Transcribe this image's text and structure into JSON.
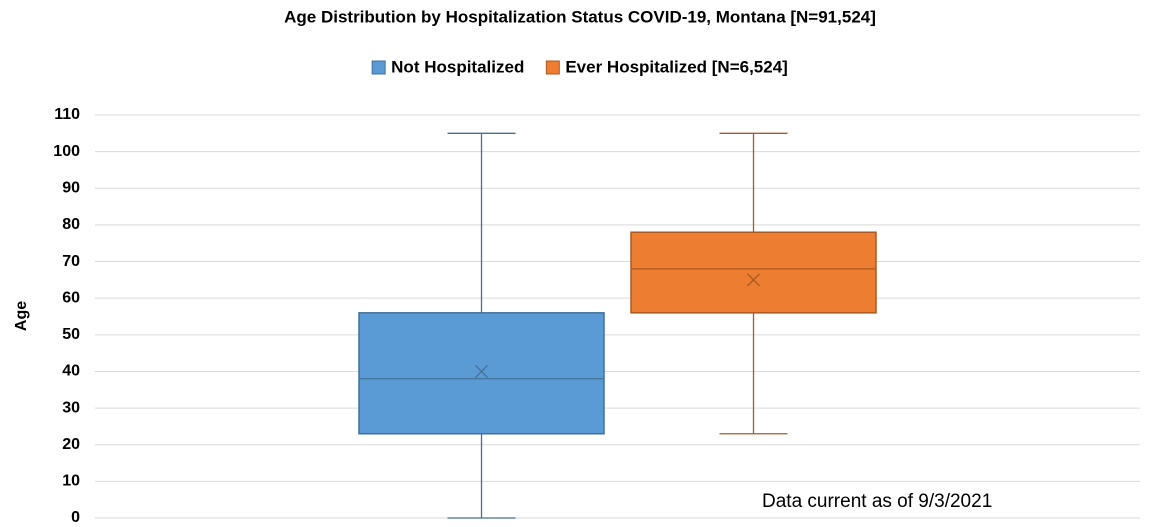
{
  "chart_data": {
    "type": "box",
    "title": "Age Distribution by Hospitalization Status COVID-19, Montana [N=91,524]",
    "ylabel": "Age",
    "annotation": "Data current as of 9/3/2021",
    "ylim": [
      0,
      110
    ],
    "yticks": [
      0,
      10,
      20,
      30,
      40,
      50,
      60,
      70,
      80,
      90,
      100,
      110
    ],
    "grid": true,
    "legend": "top",
    "series": [
      {
        "name": "Not Hospitalized",
        "color": "#5b9bd5",
        "min": 0,
        "q1": 23,
        "median": 38,
        "q3": 56,
        "max": 105,
        "mean": 40
      },
      {
        "name": "Ever Hospitalized [N=6,524]",
        "color": "#ed7d31",
        "min": 23,
        "q1": 56,
        "median": 68,
        "q3": 78,
        "max": 105,
        "mean": 65
      }
    ]
  }
}
